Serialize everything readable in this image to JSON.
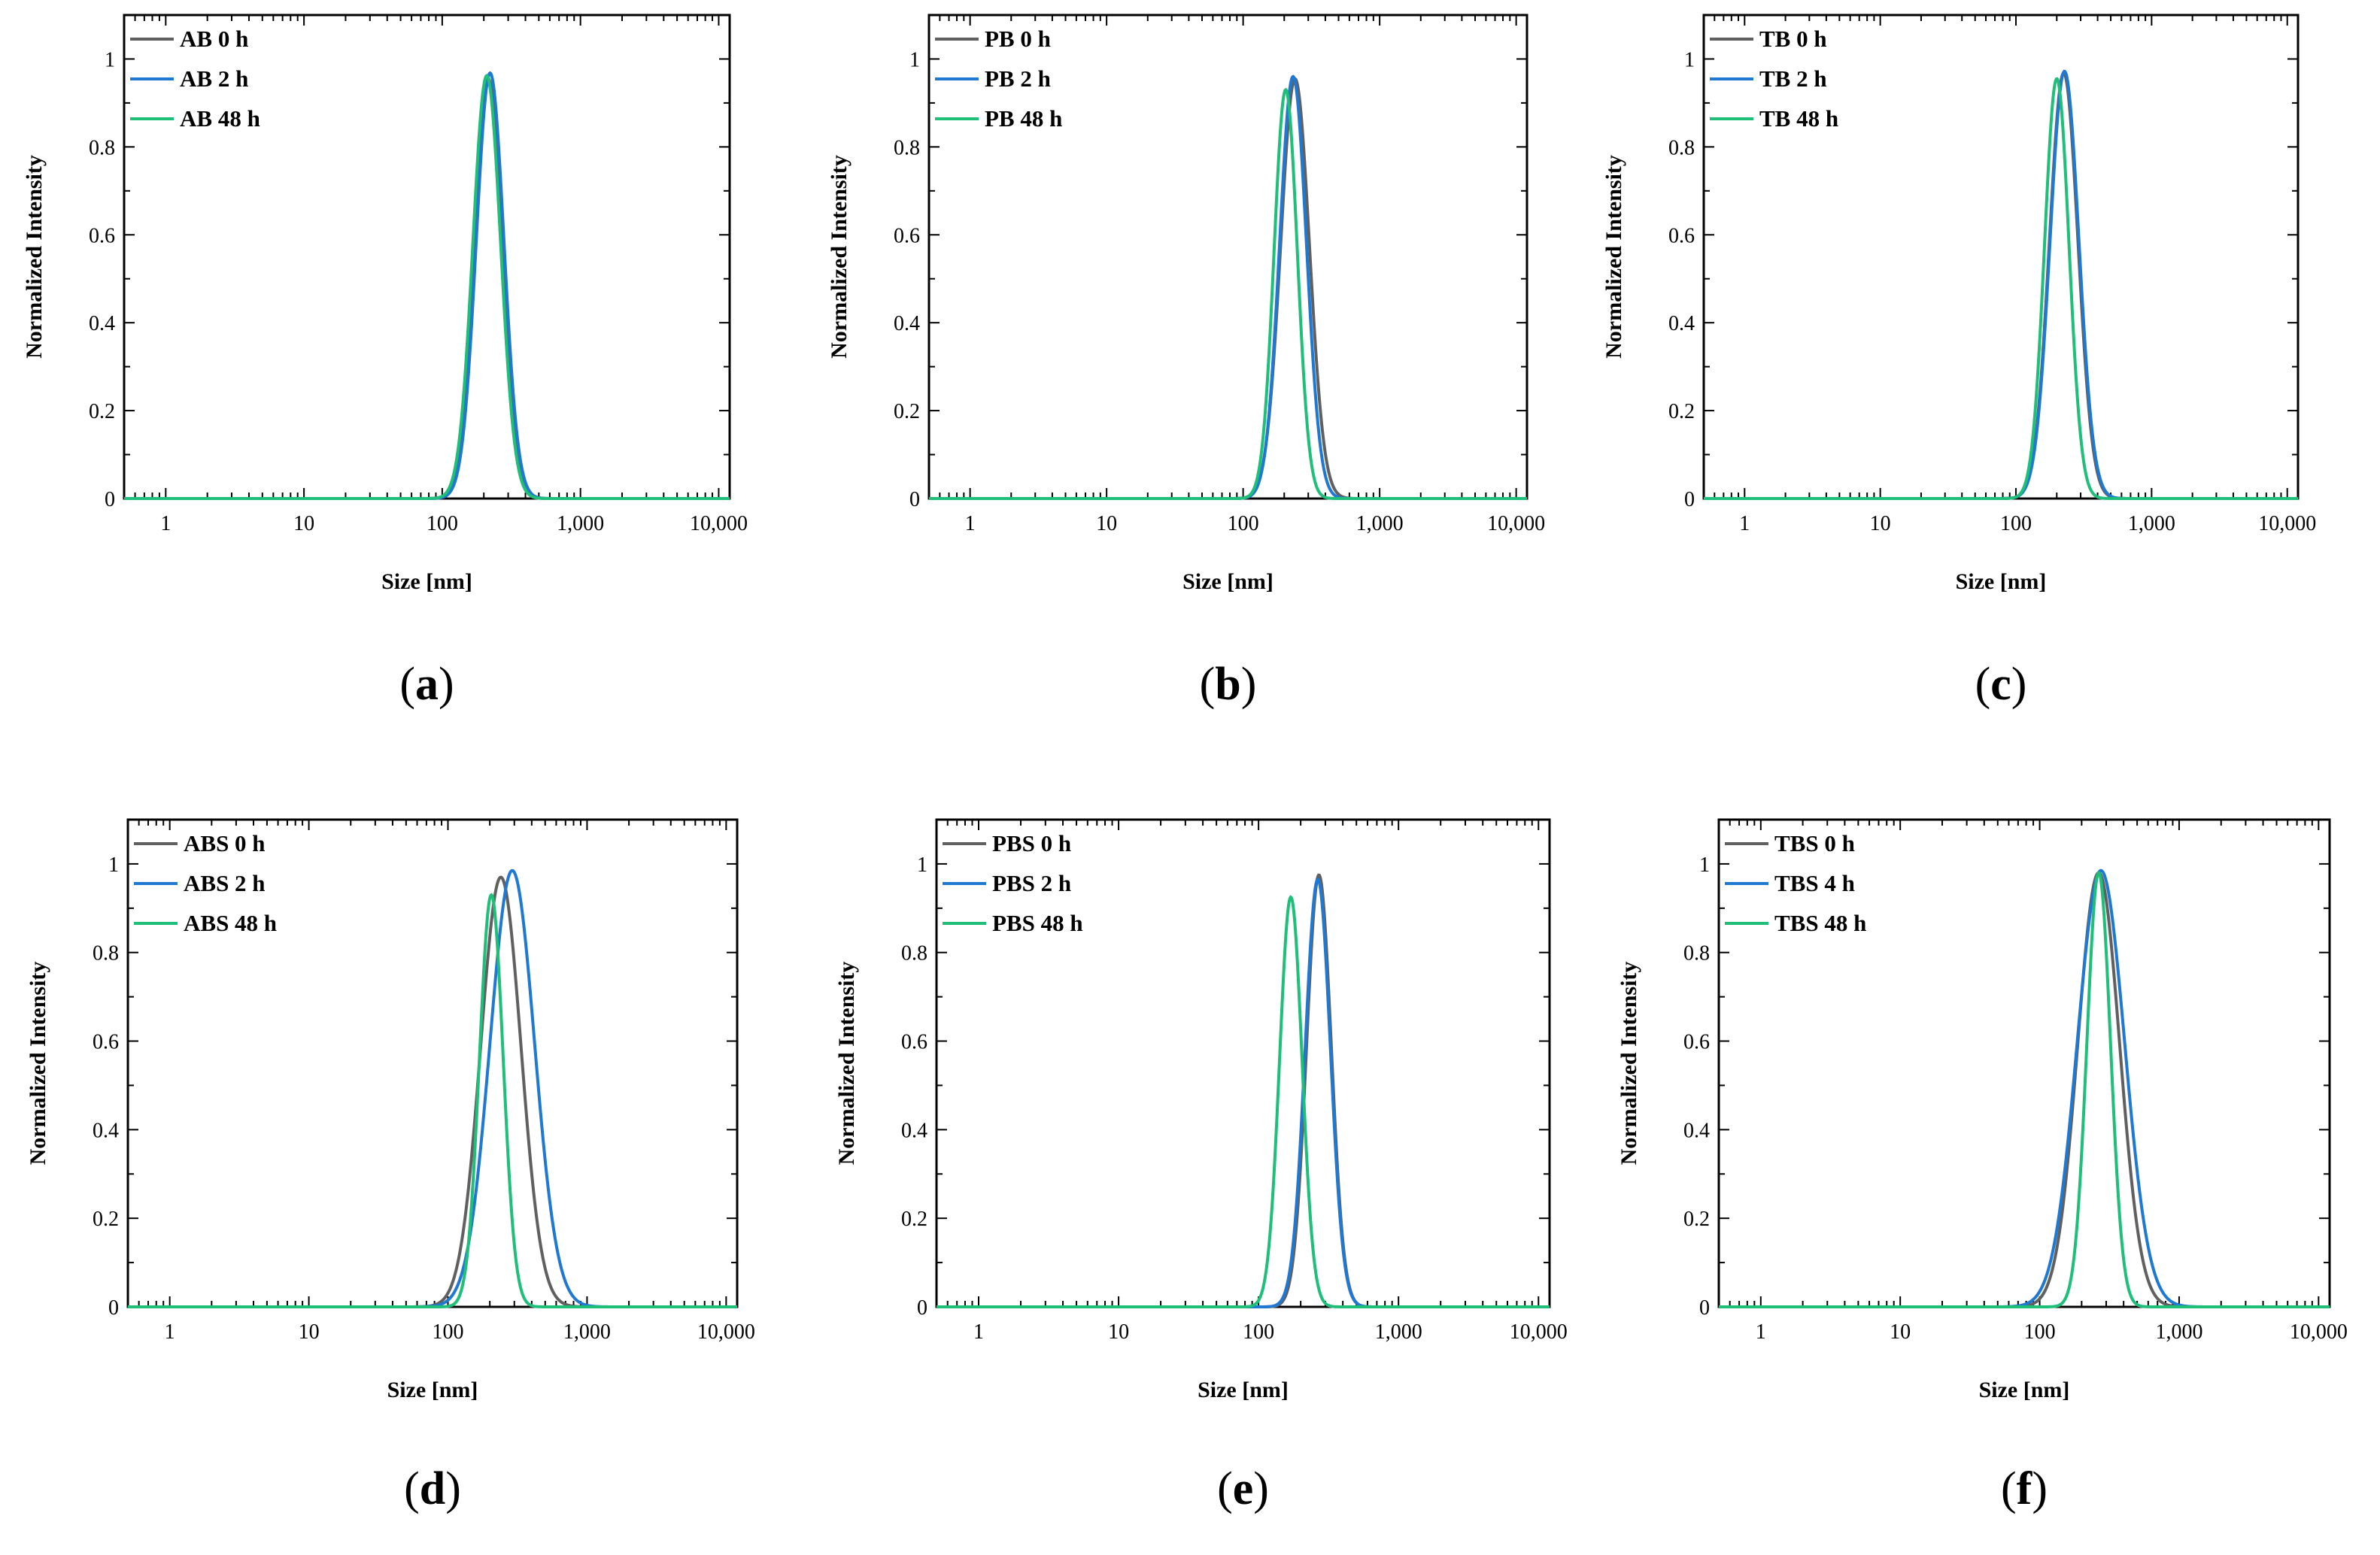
{
  "figure_description_none": "",
  "chart_data": [
    {
      "panel": "a",
      "caption_letter": "a",
      "type": "line",
      "xlabel": "Size [nm]",
      "ylabel": "Normalized Intensity",
      "xscale": "log",
      "xlim": [
        0.5,
        12000
      ],
      "ylim": [
        0,
        1.1
      ],
      "xticks": [
        1,
        10,
        100,
        1000,
        10000
      ],
      "xtick_labels": [
        "1",
        "10",
        "100",
        "1,000",
        "10,000"
      ],
      "yticks": [
        0,
        0.2,
        0.4,
        0.6,
        0.8,
        1
      ],
      "ytick_labels": [
        "0",
        "0.2",
        "0.4",
        "0.6",
        "0.8",
        "1"
      ],
      "legend_position": "top-left",
      "series": [
        {
          "name": "AB 0 h",
          "color": "#606060",
          "peak_x": 215,
          "peak_y": 0.955,
          "sigma_log10": 0.1
        },
        {
          "name": "AB 2 h",
          "color": "#1f78d1",
          "peak_x": 222,
          "peak_y": 0.968,
          "sigma_log10": 0.1
        },
        {
          "name": "AB 48 h",
          "color": "#1fbf7a",
          "peak_x": 210,
          "peak_y": 0.962,
          "sigma_log10": 0.1
        }
      ]
    },
    {
      "panel": "b",
      "caption_letter": "b",
      "type": "line",
      "xlabel": "Size [nm]",
      "ylabel": "Normalized Intensity",
      "xscale": "log",
      "xlim": [
        0.5,
        12000
      ],
      "ylim": [
        0,
        1.1
      ],
      "xticks": [
        1,
        10,
        100,
        1000,
        10000
      ],
      "xtick_labels": [
        "1",
        "10",
        "100",
        "1,000",
        "10,000"
      ],
      "yticks": [
        0,
        0.2,
        0.4,
        0.6,
        0.8,
        1
      ],
      "ytick_labels": [
        "0",
        "0.2",
        "0.4",
        "0.6",
        "0.8",
        "1"
      ],
      "legend_position": "top-left",
      "series": [
        {
          "name": "PB 0 h",
          "color": "#606060",
          "peak_x": 240,
          "peak_y": 0.955,
          "sigma_log10": 0.105
        },
        {
          "name": "PB 2 h",
          "color": "#1f78d1",
          "peak_x": 232,
          "peak_y": 0.96,
          "sigma_log10": 0.098
        },
        {
          "name": "PB 48 h",
          "color": "#1fbf7a",
          "peak_x": 205,
          "peak_y": 0.93,
          "sigma_log10": 0.085
        }
      ]
    },
    {
      "panel": "c",
      "caption_letter": "c",
      "type": "line",
      "xlabel": "Size [nm]",
      "ylabel": "Normalized Intensity",
      "xscale": "log",
      "xlim": [
        0.5,
        12000
      ],
      "ylim": [
        0,
        1.1
      ],
      "xticks": [
        1,
        10,
        100,
        1000,
        10000
      ],
      "xtick_labels": [
        "1",
        "10",
        "100",
        "1,000",
        "10,000"
      ],
      "yticks": [
        0,
        0.2,
        0.4,
        0.6,
        0.8,
        1
      ],
      "ytick_labels": [
        "0",
        "0.2",
        "0.4",
        "0.6",
        "0.8",
        "1"
      ],
      "legend_position": "top-left",
      "series": [
        {
          "name": "TB 0 h",
          "color": "#606060",
          "peak_x": 225,
          "peak_y": 0.968,
          "sigma_log10": 0.105
        },
        {
          "name": "TB 2 h",
          "color": "#1f78d1",
          "peak_x": 228,
          "peak_y": 0.972,
          "sigma_log10": 0.106
        },
        {
          "name": "TB 48 h",
          "color": "#1fbf7a",
          "peak_x": 200,
          "peak_y": 0.955,
          "sigma_log10": 0.09
        }
      ]
    },
    {
      "panel": "d",
      "caption_letter": "d",
      "type": "line",
      "xlabel": "Size [nm]",
      "ylabel": "Normalized Intensity",
      "xscale": "log",
      "xlim": [
        0.5,
        12000
      ],
      "ylim": [
        0,
        1.1
      ],
      "xticks": [
        1,
        10,
        100,
        1000,
        10000
      ],
      "xtick_labels": [
        "1",
        "10",
        "100",
        "1,000",
        "10,000"
      ],
      "yticks": [
        0,
        0.2,
        0.4,
        0.6,
        0.8,
        1
      ],
      "ytick_labels": [
        "0",
        "0.2",
        "0.4",
        "0.6",
        "0.8",
        "1"
      ],
      "legend_position": "top-left",
      "series": [
        {
          "name": "ABS 0 h",
          "color": "#606060",
          "peak_x": 240,
          "peak_y": 0.97,
          "sigma_log10": 0.145
        },
        {
          "name": "ABS 2 h",
          "color": "#1f78d1",
          "peak_x": 290,
          "peak_y": 0.985,
          "sigma_log10": 0.16
        },
        {
          "name": "ABS 48 h",
          "color": "#1fbf7a",
          "peak_x": 205,
          "peak_y": 0.93,
          "sigma_log10": 0.085
        }
      ]
    },
    {
      "panel": "e",
      "caption_letter": "e",
      "type": "line",
      "xlabel": "Size [nm]",
      "ylabel": "Normalized Intensity",
      "xscale": "log",
      "xlim": [
        0.5,
        12000
      ],
      "ylim": [
        0,
        1.1
      ],
      "xticks": [
        1,
        10,
        100,
        1000,
        10000
      ],
      "xtick_labels": [
        "1",
        "10",
        "100",
        "1,000",
        "10,000"
      ],
      "yticks": [
        0,
        0.2,
        0.4,
        0.6,
        0.8,
        1
      ],
      "ytick_labels": [
        "0",
        "0.2",
        "0.4",
        "0.6",
        "0.8",
        "1"
      ],
      "legend_position": "top-left",
      "series": [
        {
          "name": "PBS 0 h",
          "color": "#606060",
          "peak_x": 270,
          "peak_y": 0.975,
          "sigma_log10": 0.088
        },
        {
          "name": "PBS 2 h",
          "color": "#1f78d1",
          "peak_x": 265,
          "peak_y": 0.965,
          "sigma_log10": 0.09
        },
        {
          "name": "PBS 48 h",
          "color": "#1fbf7a",
          "peak_x": 170,
          "peak_y": 0.925,
          "sigma_log10": 0.08
        }
      ]
    },
    {
      "panel": "f",
      "caption_letter": "f",
      "type": "line",
      "xlabel": "Size [nm]",
      "ylabel": "Normalized Intensity",
      "xscale": "log",
      "xlim": [
        0.5,
        12000
      ],
      "ylim": [
        0,
        1.1
      ],
      "xticks": [
        1,
        10,
        100,
        1000,
        10000
      ],
      "xtick_labels": [
        "1",
        "10",
        "100",
        "1,000",
        "10,000"
      ],
      "yticks": [
        0,
        0.2,
        0.4,
        0.6,
        0.8,
        1
      ],
      "ytick_labels": [
        "0",
        "0.2",
        "0.4",
        "0.6",
        "0.8",
        "1"
      ],
      "legend_position": "top-left",
      "series": [
        {
          "name": "TBS 0 h",
          "color": "#606060",
          "peak_x": 265,
          "peak_y": 0.98,
          "sigma_log10": 0.15
        },
        {
          "name": "TBS 4 h",
          "color": "#1f78d1",
          "peak_x": 275,
          "peak_y": 0.985,
          "sigma_log10": 0.17
        },
        {
          "name": "TBS 48 h",
          "color": "#1fbf7a",
          "peak_x": 265,
          "peak_y": 0.98,
          "sigma_log10": 0.085
        }
      ]
    }
  ]
}
